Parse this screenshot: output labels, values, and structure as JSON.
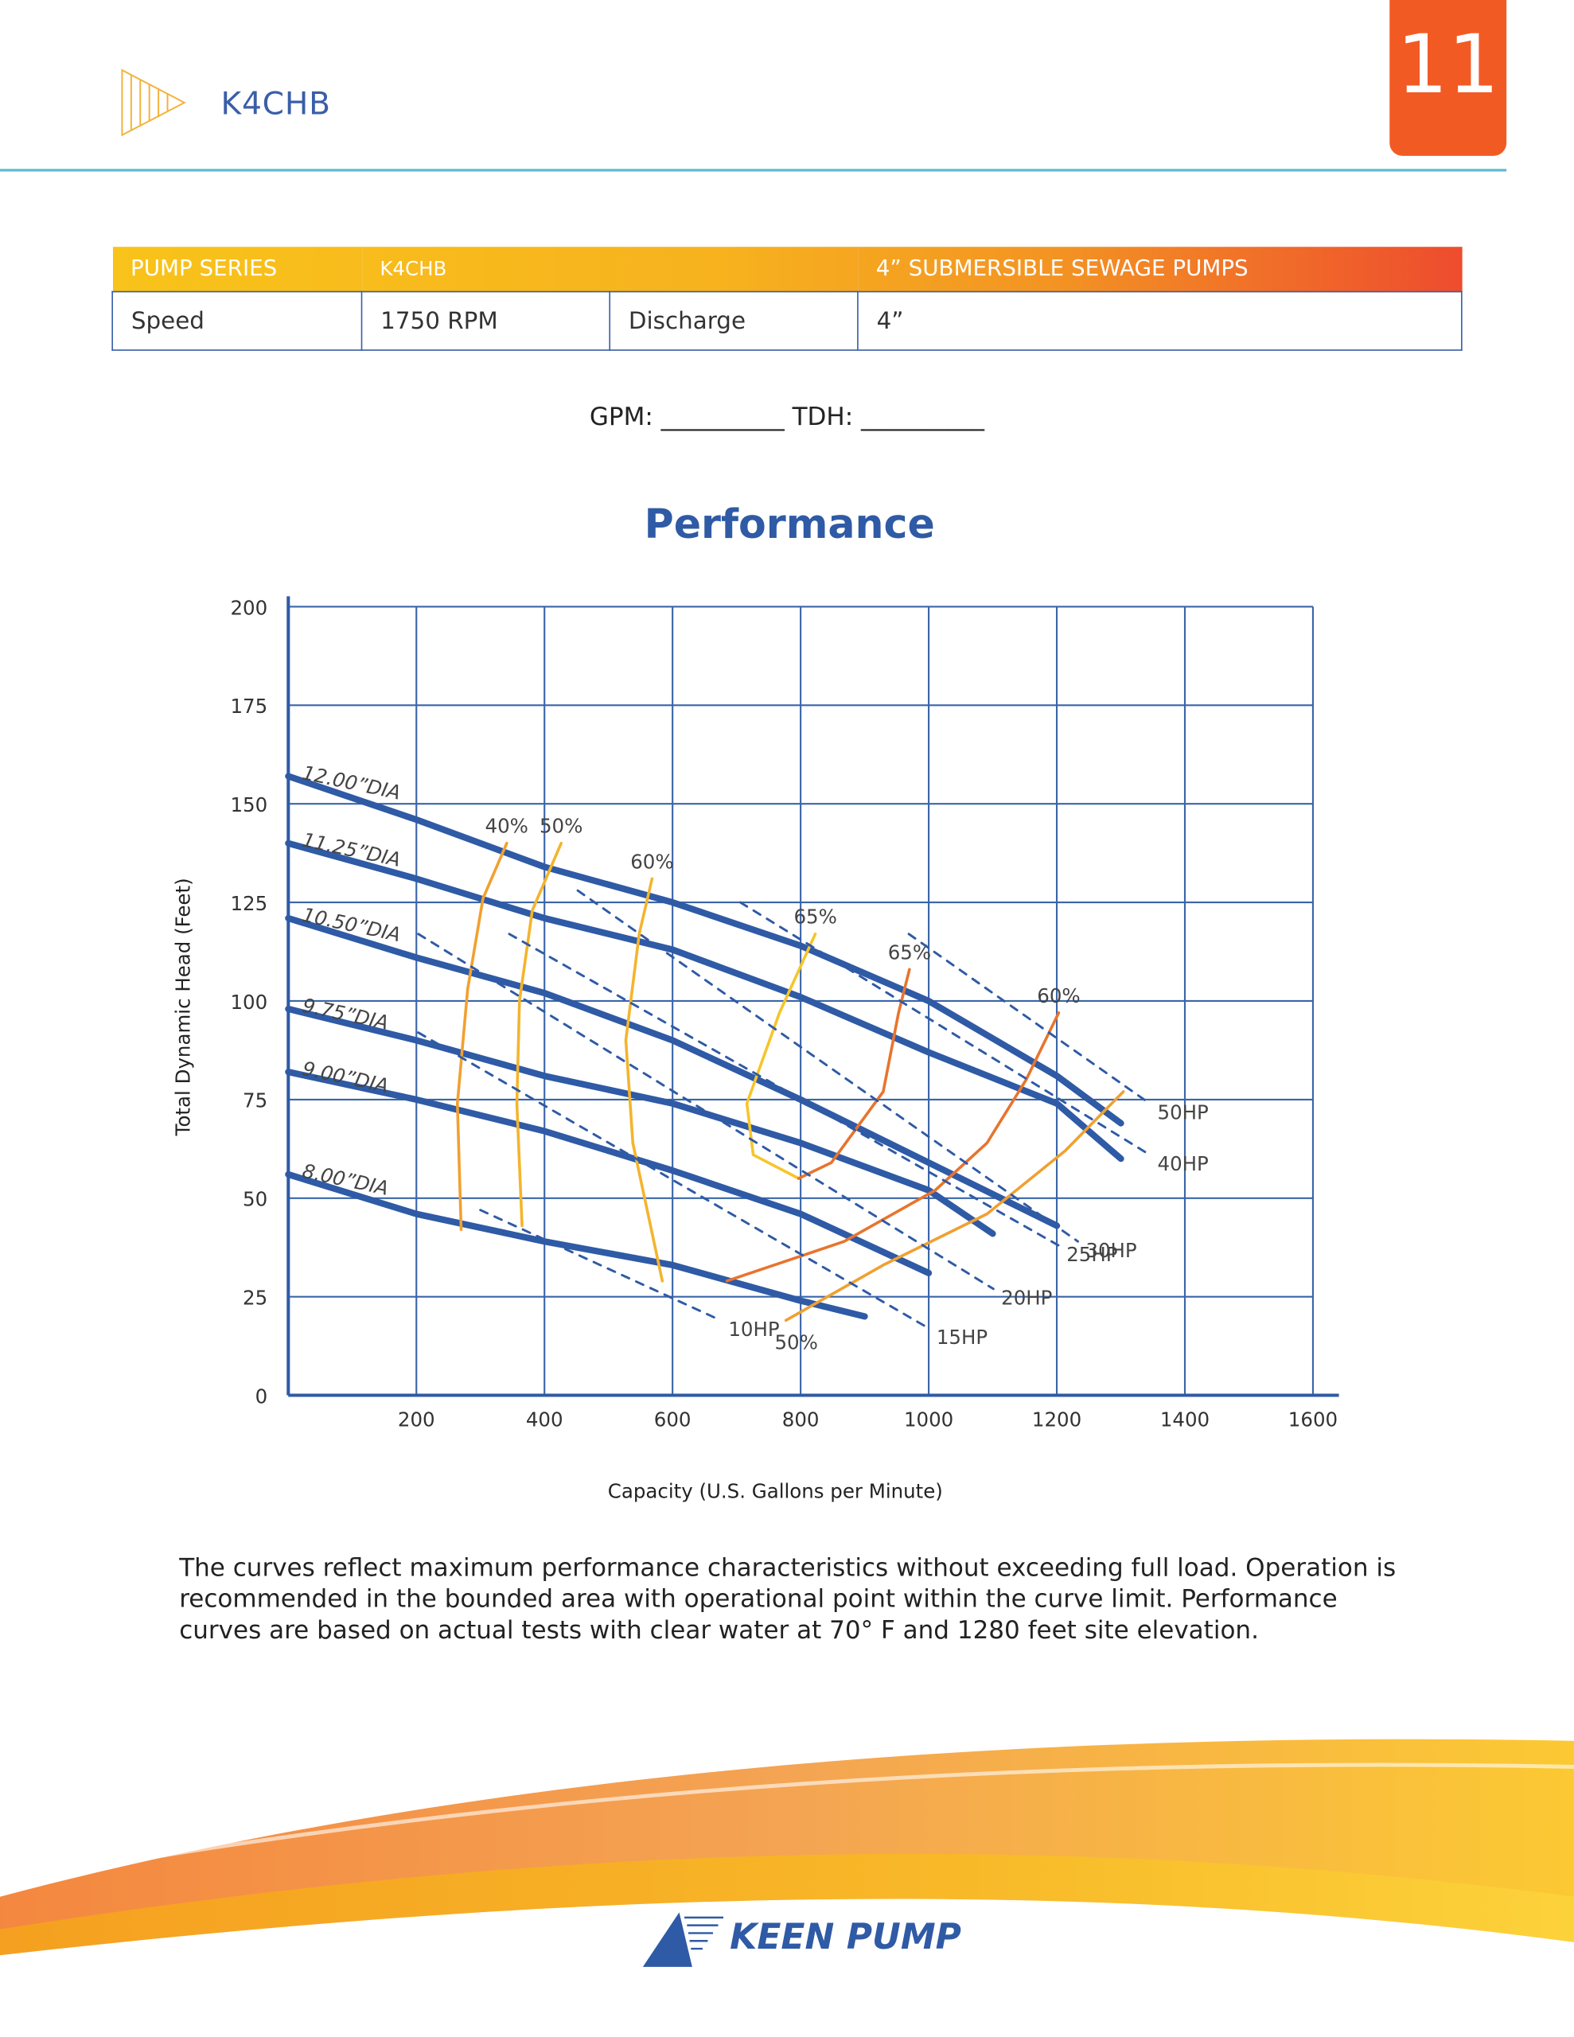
{
  "header": {
    "title": "K4CHB",
    "page_number": "11"
  },
  "table": {
    "rows": [
      [
        "PUMP SERIES",
        "K4CHB",
        "4” SUBMERSIBLE SEWAGE PUMPS"
      ],
      [
        "Speed",
        "1750 RPM",
        "Discharge",
        "4”"
      ]
    ]
  },
  "form_line": "GPM: __________ TDH: __________",
  "chart_data": {
    "type": "line",
    "title": "Performance",
    "x_label": "Capacity (U.S. Gallons per Minute)",
    "y_label": "Total Dynamic Head (Feet)",
    "xlim": [
      0,
      1600
    ],
    "ylim": [
      0,
      200
    ],
    "xticks": [
      200,
      400,
      600,
      800,
      1000,
      1200,
      1400,
      1600
    ],
    "yticks": [
      0,
      25,
      50,
      75,
      100,
      125,
      150,
      175,
      200
    ],
    "grid": true,
    "grid_color": "#3a65a8",
    "series": [
      {
        "name": "12.00”DIA",
        "kind": "diameter",
        "color": "#2f5aa5",
        "x": [
          0,
          200,
          400,
          600,
          800,
          1000,
          1200,
          1300
        ],
        "values": [
          157,
          146,
          134,
          125,
          114,
          100,
          81,
          69
        ]
      },
      {
        "name": "11.25”DIA",
        "kind": "diameter",
        "color": "#2f5aa5",
        "x": [
          0,
          200,
          400,
          600,
          800,
          1000,
          1200,
          1300
        ],
        "values": [
          140,
          131,
          121,
          113,
          101,
          87,
          74,
          60
        ]
      },
      {
        "name": "10.50”DIA",
        "kind": "diameter",
        "color": "#2f5aa5",
        "x": [
          0,
          200,
          400,
          600,
          800,
          1000,
          1200
        ],
        "values": [
          121,
          111,
          102,
          90,
          75,
          59,
          43
        ]
      },
      {
        "name": "9.75”DIA",
        "kind": "diameter",
        "color": "#2f5aa5",
        "x": [
          0,
          200,
          400,
          600,
          800,
          1000,
          1100
        ],
        "values": [
          98,
          90,
          81,
          74,
          64,
          52,
          41
        ]
      },
      {
        "name": "9.00”DIA",
        "kind": "diameter",
        "color": "#2f5aa5",
        "x": [
          0,
          200,
          400,
          600,
          800,
          1000
        ],
        "values": [
          82,
          75,
          67,
          57,
          46,
          31
        ]
      },
      {
        "name": "8.00”DIA",
        "kind": "diameter",
        "color": "#2f5aa5",
        "x": [
          0,
          200,
          400,
          600,
          800,
          900
        ],
        "values": [
          56,
          46,
          39,
          33,
          24,
          20
        ]
      },
      {
        "name": "40%",
        "kind": "efficiency",
        "color": "#f2a030",
        "x": [
          341,
          304,
          280,
          264,
          270
        ],
        "values": [
          140,
          126,
          103,
          74,
          42
        ]
      },
      {
        "name": "50%",
        "kind": "efficiency",
        "color": "#f4b42c",
        "x": [
          426,
          381,
          361,
          357,
          365
        ],
        "values": [
          140,
          123,
          100,
          74,
          43
        ]
      },
      {
        "name": "60%",
        "kind": "efficiency",
        "color": "#f4b42c",
        "x": [
          568,
          548,
          527,
          538,
          584
        ],
        "values": [
          131,
          117,
          90,
          64,
          29
        ]
      },
      {
        "name": "65%",
        "kind": "efficiency",
        "color": "#f7c52a",
        "x": [
          823,
          767,
          716,
          726,
          797
        ],
        "values": [
          117,
          97,
          74,
          61,
          55
        ]
      },
      {
        "name": "65%",
        "kind": "efficiency",
        "color": "#e8742e",
        "x": [
          970,
          953,
          929,
          848,
          797
        ],
        "values": [
          108,
          97,
          77,
          59,
          55
        ]
      },
      {
        "name": "60%",
        "kind": "efficiency",
        "color": "#e8742e",
        "x": [
          1203,
          1152,
          1091,
          1010,
          868,
          685
        ],
        "values": [
          97,
          80,
          64,
          52,
          39,
          29
        ]
      },
      {
        "name": "50%",
        "kind": "efficiency",
        "color": "#f0a030",
        "x": [
          777,
          929,
          1091,
          1213,
          1304
        ],
        "values": [
          19,
          33,
          46,
          62,
          77
        ]
      },
      {
        "name": "10HP",
        "kind": "power",
        "color": "#2f5aa5",
        "x": [
          300,
          675
        ],
        "values": [
          47,
          19
        ]
      },
      {
        "name": "15HP",
        "kind": "power",
        "color": "#2f5aa5",
        "x": [
          203,
          1000
        ],
        "values": [
          92,
          17
        ]
      },
      {
        "name": "20HP",
        "kind": "power",
        "color": "#2f5aa5",
        "x": [
          203,
          1101
        ],
        "values": [
          117,
          27
        ]
      },
      {
        "name": "25HP",
        "kind": "power",
        "color": "#2f5aa5",
        "x": [
          345,
          1203
        ],
        "values": [
          117,
          38
        ]
      },
      {
        "name": "30HP",
        "kind": "power",
        "color": "#2f5aa5",
        "x": [
          452,
          1233
        ],
        "values": [
          128,
          39
        ]
      },
      {
        "name": "40HP",
        "kind": "power",
        "color": "#2f5aa5",
        "x": [
          706,
          1345
        ],
        "values": [
          125,
          61
        ]
      },
      {
        "name": "50HP",
        "kind": "power",
        "color": "#2f5aa5",
        "x": [
          969,
          1345
        ],
        "values": [
          117,
          74
        ]
      }
    ]
  },
  "notes": "The curves reflect maximum performance characteristics without exceeding full load. Operation is recommended in the bounded area with operational point within the curve limit. Performance curves are based on actual tests with clear water at 70° F and 1280 feet site elevation.",
  "footer": {
    "brand": "KEEN PUMP"
  }
}
